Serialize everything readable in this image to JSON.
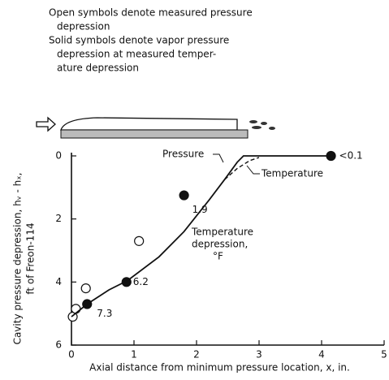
{
  "chart_data": {
    "type": "scatter",
    "notes": [
      "Open symbols denote measured pressure",
      "depression",
      "Solid symbols denote vapor pressure",
      "depression at measured temper-",
      "ature depression"
    ],
    "x_label": "Axial distance from minimum pressure location, x, in.",
    "y_label": [
      "Cavity pressure depression, hᵥ - hₓ,",
      "ft of Freon-114"
    ],
    "annotations": {
      "pressure": "Pressure",
      "temperature": "Temperature",
      "depression": [
        "Temperature",
        "depression,",
        "°F"
      ]
    },
    "xlim": [
      0,
      5
    ],
    "xticks": [
      0,
      1,
      2,
      3,
      4,
      5
    ],
    "ylim": [
      6,
      0
    ],
    "yticks": [
      0,
      2,
      4,
      6
    ],
    "series": [
      {
        "marker": "open",
        "color": "#111",
        "x": [
          0.02,
          0.07,
          0.23,
          1.08
        ],
        "values": [
          5.1,
          4.85,
          4.2,
          2.7
        ]
      },
      {
        "marker": "solid",
        "color": "#111",
        "x": [
          0.25,
          0.88,
          1.8,
          4.15
        ],
        "values": [
          4.7,
          4.0,
          1.25,
          0.0
        ],
        "point_labels": [
          "7.3",
          "6.2",
          "1.9",
          "<0.1"
        ]
      },
      {
        "marker": "line",
        "color": "#111",
        "x": [
          0.0,
          0.25,
          0.6,
          0.9,
          1.4,
          1.8,
          2.2,
          2.45,
          2.65,
          2.75,
          4.15
        ],
        "values": [
          5.1,
          4.7,
          4.25,
          3.95,
          3.2,
          2.4,
          1.4,
          0.75,
          0.2,
          0.0,
          0.0
        ]
      },
      {
        "marker": "dashed",
        "color": "#111",
        "x": [
          2.45,
          2.65,
          2.85,
          3.0
        ],
        "values": [
          0.75,
          0.4,
          0.15,
          0.05
        ]
      }
    ]
  }
}
